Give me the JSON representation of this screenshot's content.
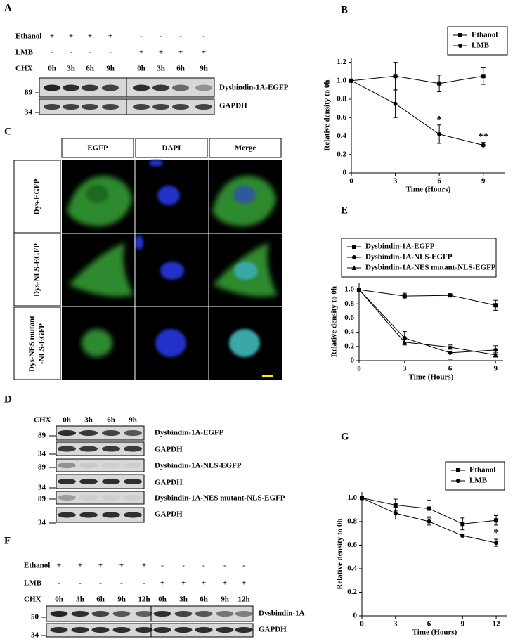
{
  "chart_data": [
    {
      "panel": "B",
      "type": "line",
      "xlabel": "Time (Hours)",
      "ylabel": "Relative density to 0h",
      "x": [
        0,
        3,
        6,
        9
      ],
      "xlim": [
        0,
        10.5
      ],
      "xticks": [
        0,
        3,
        6,
        9
      ],
      "ylim": [
        0,
        1.25
      ],
      "yticks": [
        0,
        0.2,
        0.4,
        0.6,
        0.8,
        {
          "value": 1,
          "label": "1.0"
        },
        1.2
      ],
      "legend": "upper right",
      "series": [
        {
          "name": "Ethanol",
          "color": "#000000",
          "marker": "square",
          "values": [
            1.0,
            1.05,
            0.97,
            1.05
          ],
          "errors": [
            0,
            0.15,
            0.09,
            0.09
          ]
        },
        {
          "name": "LMB",
          "color": "#000000",
          "marker": "circle",
          "values": [
            1.0,
            0.75,
            0.42,
            0.3
          ],
          "errors": [
            0,
            0.15,
            0.1,
            0.03
          ]
        }
      ],
      "annotations": [
        {
          "text": "*",
          "x": 6,
          "y": 0.57
        },
        {
          "text": "**",
          "x": 9,
          "y": 0.39
        }
      ]
    },
    {
      "panel": "E",
      "type": "line",
      "xlabel": "Time (Hours)",
      "ylabel": "Relative density to 0h",
      "x": [
        0,
        3,
        6,
        9
      ],
      "xlim": [
        0,
        9.5
      ],
      "xticks": [
        0,
        3,
        6,
        9
      ],
      "ylim": [
        0,
        1.1
      ],
      "yticks": [
        0,
        0.2,
        0.4,
        0.6,
        0.8,
        {
          "value": 1,
          "label": "1.0"
        }
      ],
      "legend": "upper left",
      "series": [
        {
          "name": "Dysbindin-1A-EGFP",
          "color": "#000000",
          "marker": "square",
          "values": [
            1.0,
            0.91,
            0.92,
            0.78
          ],
          "errors": [
            0,
            0.04,
            0.02,
            0.07
          ]
        },
        {
          "name": "Dysbindin-1A-NLS-EGFP",
          "color": "#000000",
          "marker": "circle",
          "values": [
            1.0,
            0.32,
            0.11,
            0.15
          ],
          "errors": [
            0,
            0.09,
            0.09,
            0.06
          ]
        },
        {
          "name": "Dysbindin-1A-NES mutant-NLS-EGFP",
          "color": "#000000",
          "marker": "triangle",
          "values": [
            1.0,
            0.26,
            0.19,
            0.08
          ],
          "errors": [
            0,
            0.04,
            0.03,
            0.03
          ]
        }
      ],
      "annotations": []
    },
    {
      "panel": "G",
      "type": "line",
      "xlabel": "Time (Hours)",
      "ylabel": "Relative density to 0h",
      "x": [
        0,
        3,
        6,
        9,
        12
      ],
      "xlim": [
        0,
        13
      ],
      "xticks": [
        0,
        3,
        6,
        9,
        12
      ],
      "ylim": [
        0,
        1.05
      ],
      "yticks": [
        0,
        0.2,
        0.4,
        0.6,
        0.8,
        {
          "value": 1,
          "label": "1.0"
        }
      ],
      "legend": "upper right",
      "series": [
        {
          "name": "Ethanol",
          "color": "#000000",
          "marker": "square",
          "values": [
            1.0,
            0.94,
            0.91,
            0.78,
            0.81
          ],
          "errors": [
            0,
            0.05,
            0.07,
            0.05,
            0.04
          ]
        },
        {
          "name": "LMB",
          "color": "#000000",
          "marker": "circle",
          "values": [
            1.0,
            0.87,
            0.8,
            0.68,
            0.62
          ],
          "errors": [
            0,
            0.05,
            0.03,
            0.01,
            0.03
          ]
        }
      ],
      "annotations": [
        {
          "text": "*",
          "x": 12,
          "y": 0.7
        }
      ]
    }
  ],
  "panel_a": {
    "label": "A",
    "rows": [
      {
        "name": "Ethanol",
        "values": [
          "+",
          "+",
          "+",
          "+",
          "-",
          "-",
          "-",
          "-"
        ]
      },
      {
        "name": "LMB",
        "values": [
          "-",
          "-",
          "-",
          "-",
          "+",
          "+",
          "+",
          "+"
        ]
      },
      {
        "name": "CHX",
        "values": [
          "0h",
          "3h",
          "6h",
          "9h",
          "0h",
          "3h",
          "6h",
          "9h"
        ]
      }
    ],
    "markers": [
      "89",
      "34"
    ],
    "bands": [
      "Dysbindin-1A-EGFP",
      "GAPDH"
    ]
  },
  "panel_c": {
    "label": "C",
    "columns": [
      "EGFP",
      "DAPI",
      "Merge"
    ],
    "rows": [
      [
        "Dys-EGFP"
      ],
      [
        "Dys-NLS-EGFP"
      ],
      [
        "Dys-NES mutant",
        "-NLS-EGFP"
      ]
    ]
  },
  "panel_d": {
    "label": "D",
    "row": {
      "name": "CHX",
      "values": [
        "0h",
        "3h",
        "6h",
        "9h"
      ]
    },
    "markers": [
      "89",
      "34",
      "89",
      "34",
      "89",
      "34"
    ],
    "bands": [
      "Dysbindin-1A-EGFP",
      "GAPDH",
      "Dysbindin-1A-NLS-EGFP",
      "GAPDH",
      "Dysbindin-1A-NES mutant-NLS-EGFP",
      "GAPDH"
    ]
  },
  "panel_f": {
    "label": "F",
    "rows": [
      {
        "name": "Ethanol",
        "values": [
          "+",
          "+",
          "+",
          "+",
          "+",
          "-",
          "-",
          "-",
          "-",
          "-"
        ]
      },
      {
        "name": "LMB",
        "values": [
          "-",
          "-",
          "-",
          "-",
          "-",
          "+",
          "+",
          "+",
          "+",
          "+"
        ]
      },
      {
        "name": "CHX",
        "values": [
          "0h",
          "3h",
          "6h",
          "9h",
          "12h",
          "0h",
          "3h",
          "6h",
          "9h",
          "12h"
        ]
      }
    ],
    "markers": [
      "50",
      "34"
    ],
    "bands": [
      "Dysbindin-1A",
      "GAPDH"
    ]
  }
}
